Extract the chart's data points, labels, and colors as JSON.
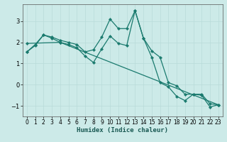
{
  "xlabel": "Humidex (Indice chaleur)",
  "xlim": [
    -0.5,
    23.5
  ],
  "ylim": [
    -1.5,
    3.8
  ],
  "yticks": [
    -1,
    0,
    1,
    2,
    3
  ],
  "xticks": [
    0,
    1,
    2,
    3,
    4,
    5,
    6,
    7,
    8,
    9,
    10,
    11,
    12,
    13,
    14,
    15,
    16,
    17,
    18,
    19,
    20,
    21,
    22,
    23
  ],
  "bg_color": "#cceae8",
  "line_color": "#1a7a6e",
  "grid_color": "#b8dbd9",
  "line1_x": [
    0,
    1,
    2,
    3,
    4,
    5,
    6,
    7,
    8,
    9,
    10,
    11,
    12,
    13,
    14,
    15,
    16,
    17,
    18,
    19,
    20,
    21,
    22,
    23
  ],
  "line1_y": [
    1.55,
    1.85,
    2.35,
    2.25,
    2.1,
    2.0,
    1.9,
    1.55,
    1.65,
    2.25,
    3.1,
    2.65,
    2.65,
    3.5,
    2.2,
    1.6,
    1.3,
    0.1,
    -0.05,
    -0.45,
    -0.45,
    -0.45,
    -0.9,
    -0.95
  ],
  "line2_x": [
    0,
    1,
    2,
    3,
    4,
    5,
    6,
    7,
    8,
    9,
    10,
    11,
    12,
    13,
    14,
    15,
    16,
    17,
    18,
    19,
    20,
    21,
    22,
    23
  ],
  "line2_y": [
    1.55,
    1.9,
    2.35,
    2.2,
    2.0,
    1.9,
    1.75,
    1.35,
    1.05,
    1.7,
    2.3,
    1.95,
    1.85,
    3.5,
    2.2,
    1.3,
    0.1,
    -0.1,
    -0.55,
    -0.75,
    -0.45,
    -0.5,
    -1.05,
    -0.95
  ],
  "line3_x": [
    0,
    4,
    23
  ],
  "line3_y": [
    1.95,
    2.0,
    -0.95
  ]
}
